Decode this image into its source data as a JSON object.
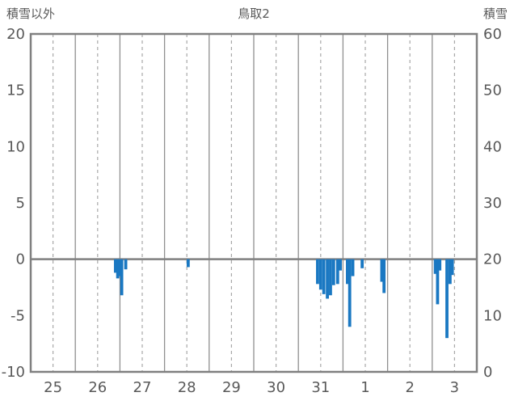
{
  "header": {
    "left_axis_title": "積雪以外",
    "chart_title": "鳥取2",
    "right_axis_title": "積雪"
  },
  "chart_data": {
    "type": "bar",
    "title": "鳥取2",
    "left_axis": {
      "title": "積雪以外",
      "min": -10,
      "max": 20,
      "ticks": [
        20,
        15,
        10,
        5,
        0,
        -5,
        -10
      ]
    },
    "right_axis": {
      "title": "積雪",
      "min": 0,
      "max": 60,
      "ticks": [
        60,
        50,
        40,
        30,
        20,
        10,
        0
      ]
    },
    "x_axis": {
      "day_labels": [
        "25",
        "26",
        "27",
        "28",
        "29",
        "30",
        "31",
        "1",
        "2",
        "3"
      ]
    },
    "grid": {
      "solid_day_lines": true,
      "dashed_half_day_lines": true,
      "horizontal_lines": false
    },
    "legend": "none",
    "bar_color": "#1a78c2",
    "colors": {
      "axis": "#808080",
      "grid_solid": "#8f8f8f",
      "grid_dashed": "#a8a8a8",
      "text": "#595959"
    },
    "series": [
      {
        "name": "積雪以外",
        "axis": "left",
        "points": [
          {
            "t": 1.9,
            "v": -1.2
          },
          {
            "t": 1.95,
            "v": -1.7
          },
          {
            "t": 2.0,
            "v": -1.5
          },
          {
            "t": 2.04,
            "v": -3.2
          },
          {
            "t": 2.13,
            "v": -0.9
          },
          {
            "t": 3.53,
            "v": -0.7
          },
          {
            "t": 6.43,
            "v": -2.2
          },
          {
            "t": 6.5,
            "v": -2.7
          },
          {
            "t": 6.57,
            "v": -3.1
          },
          {
            "t": 6.65,
            "v": -3.5
          },
          {
            "t": 6.72,
            "v": -3.2
          },
          {
            "t": 6.79,
            "v": -2.3
          },
          {
            "t": 6.88,
            "v": -2.2
          },
          {
            "t": 6.94,
            "v": -1.0
          },
          {
            "t": 7.1,
            "v": -2.2
          },
          {
            "t": 7.15,
            "v": -6.0
          },
          {
            "t": 7.22,
            "v": -1.5
          },
          {
            "t": 7.43,
            "v": -0.8
          },
          {
            "t": 7.87,
            "v": -2.0
          },
          {
            "t": 7.92,
            "v": -3.0
          },
          {
            "t": 9.07,
            "v": -1.3
          },
          {
            "t": 9.12,
            "v": -4.0
          },
          {
            "t": 9.17,
            "v": -1.0
          },
          {
            "t": 9.33,
            "v": -7.0
          },
          {
            "t": 9.4,
            "v": -2.2
          },
          {
            "t": 9.45,
            "v": -1.4
          }
        ]
      }
    ]
  }
}
